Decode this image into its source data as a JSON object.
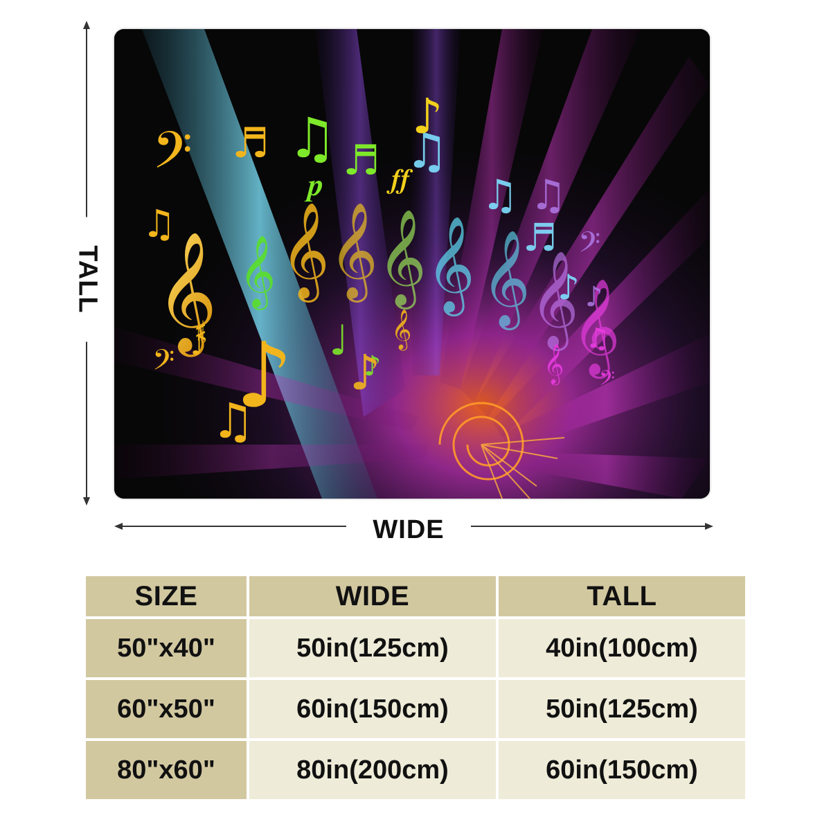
{
  "dimension_labels": {
    "wide": "WIDE",
    "tall": "TALL"
  },
  "artwork": {
    "description_icon": "music-notes-spiral-artwork",
    "colors": {
      "background": "#070707",
      "gold": "#f2b51c",
      "green": "#7ee82a",
      "cyan": "#5fd8f0",
      "magenta": "#e83ce0",
      "purple": "#8a3fd0",
      "orange": "#ff8a1a"
    }
  },
  "size_table": {
    "headers": {
      "size": "SIZE",
      "wide": "WIDE",
      "tall": "TALL"
    },
    "rows": [
      {
        "size": "50\"x40\"",
        "wide": "50in(125cm)",
        "tall": "40in(100cm)"
      },
      {
        "size": "60\"x50\"",
        "wide": "60in(150cm)",
        "tall": "50in(125cm)"
      },
      {
        "size": "80\"x60\"",
        "wide": "80in(200cm)",
        "tall": "60in(150cm)"
      }
    ]
  },
  "theme": {
    "header_bg": "#d2c8a0",
    "cell_bg": "#eeebd8",
    "text": "#111111"
  }
}
